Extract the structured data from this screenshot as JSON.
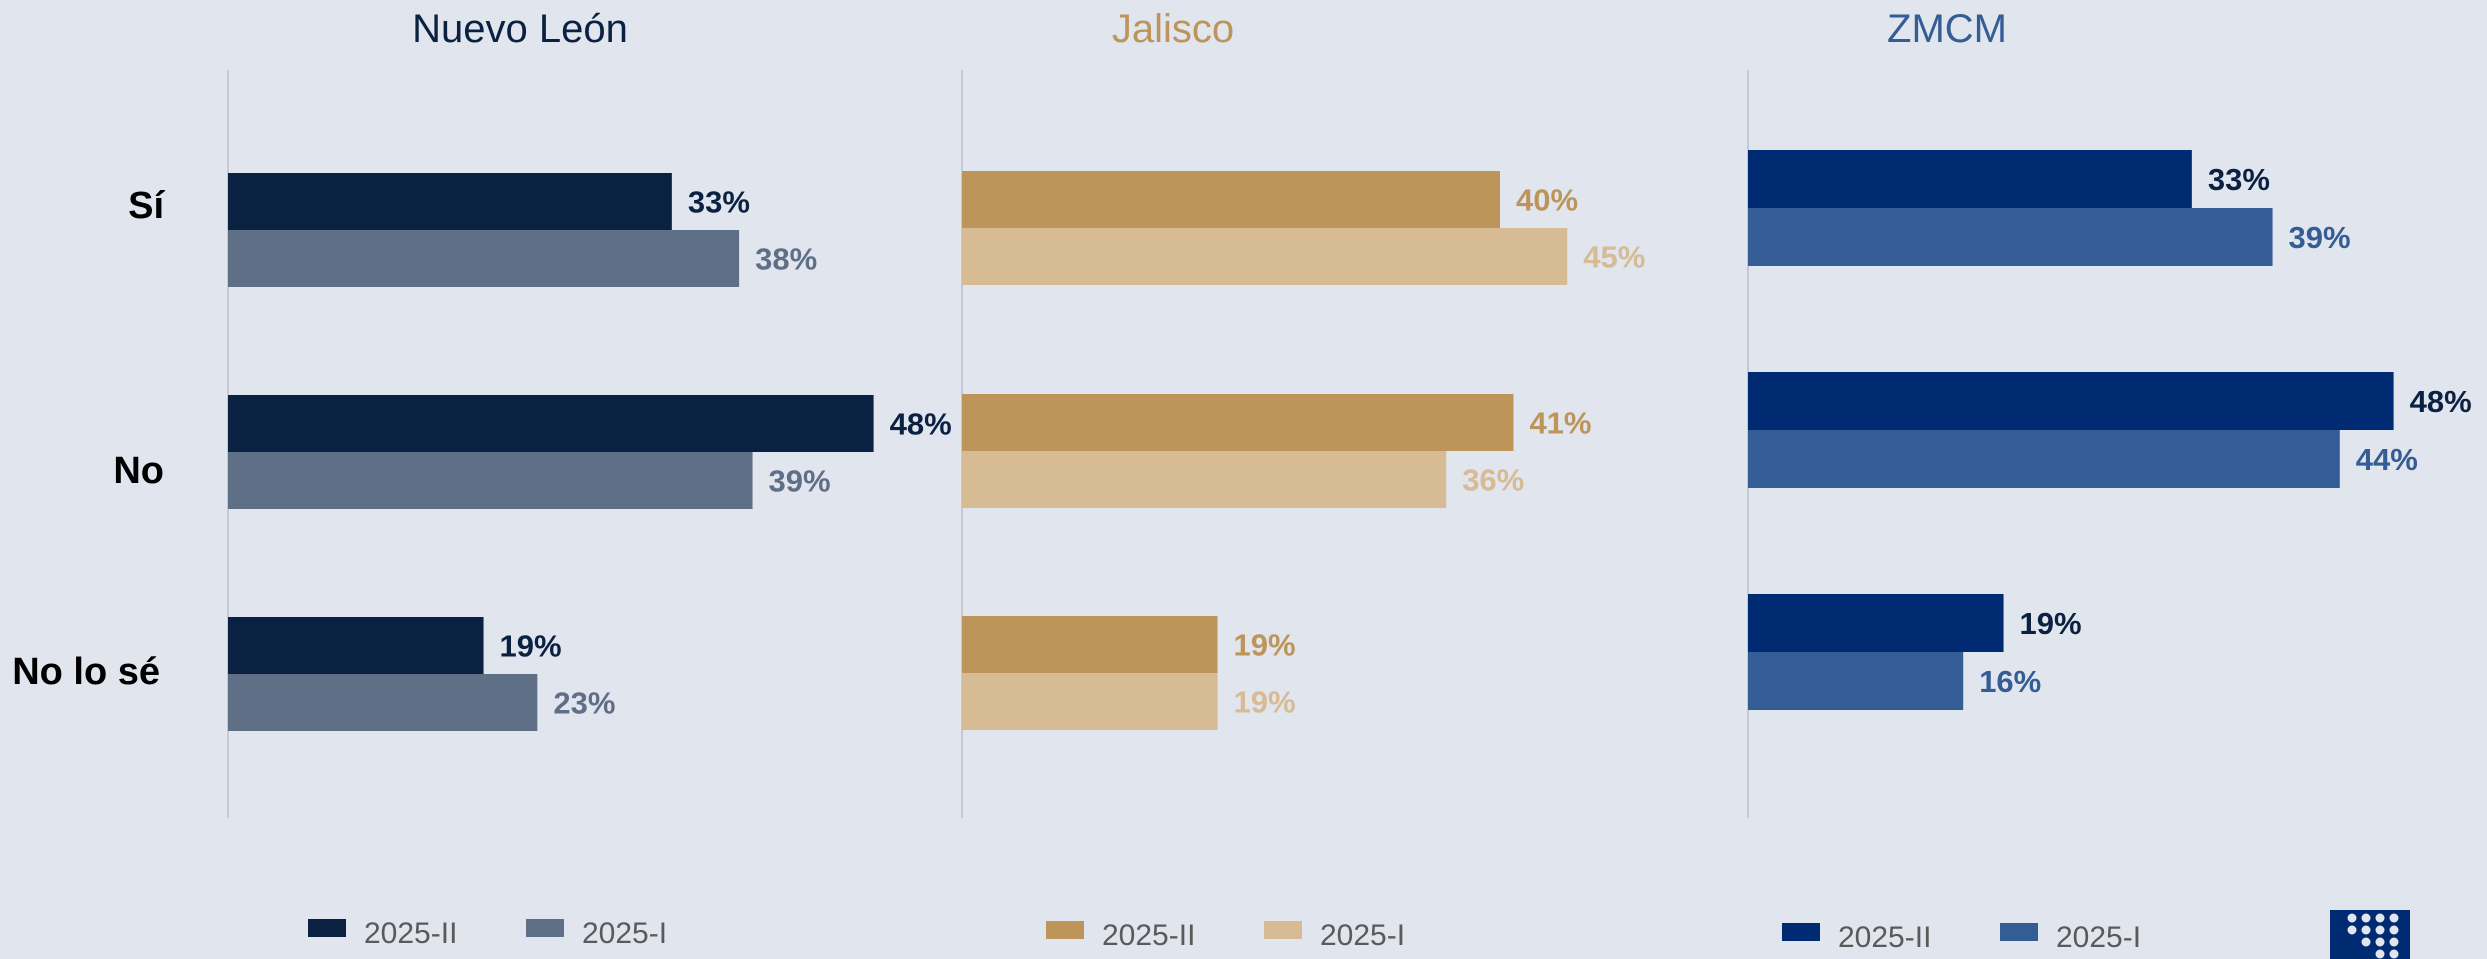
{
  "chart_data": [
    {
      "type": "bar",
      "orientation": "horizontal",
      "title": "Nuevo León",
      "title_color": "#0b2142",
      "categories": [
        "Sí",
        "No",
        "No lo sé"
      ],
      "series": [
        {
          "name": "2025-II",
          "values": [
            33,
            48,
            19
          ],
          "color": "#0b2142",
          "label_color": "#0b2142"
        },
        {
          "name": "2025-I",
          "values": [
            38,
            39,
            23
          ],
          "color": "#5f6f86",
          "label_color": "#5f6f86"
        }
      ],
      "value_suffix": "%",
      "xlim": [
        0,
        50
      ],
      "legend": "bottom",
      "grid": false
    },
    {
      "type": "bar",
      "orientation": "horizontal",
      "title": "Jalisco",
      "title_color": "#bd955a",
      "categories": [
        "Sí",
        "No",
        "No lo sé"
      ],
      "series": [
        {
          "name": "2025-II",
          "values": [
            40,
            41,
            19
          ],
          "color": "#bd955a",
          "label_color": "#bd955a"
        },
        {
          "name": "2025-I",
          "values": [
            45,
            36,
            19
          ],
          "color": "#d6bb94",
          "label_color": "#d6bb94"
        }
      ],
      "value_suffix": "%",
      "xlim": [
        0,
        50
      ],
      "legend": "bottom",
      "grid": false
    },
    {
      "type": "bar",
      "orientation": "horizontal",
      "title": "ZMCM",
      "title_color": "#345d95",
      "categories": [
        "Sí",
        "No",
        "No lo sé"
      ],
      "series": [
        {
          "name": "2025-II",
          "values": [
            33,
            48,
            19
          ],
          "color": "#002b73",
          "label_color": "#0b2142"
        },
        {
          "name": "2025-I",
          "values": [
            39,
            44,
            16
          ],
          "color": "#345d95",
          "label_color": "#345d95"
        }
      ],
      "value_suffix": "%",
      "xlim": [
        0,
        50
      ],
      "legend": "bottom",
      "grid": false
    }
  ],
  "colors": {
    "background": "#e1e5ee",
    "axis_line": "#c5c9d2",
    "category_text": "#000000",
    "legend_text": "#5a5a5a",
    "logo": "#002b73"
  },
  "logo": {
    "icon": "grid-dots-logo-icon"
  }
}
